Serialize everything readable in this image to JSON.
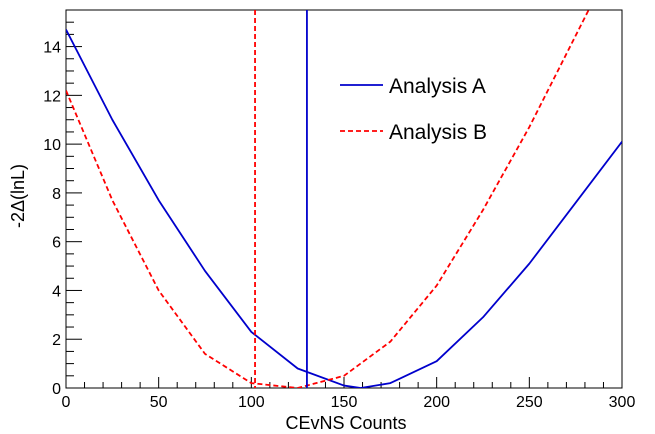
{
  "chart_data": {
    "type": "line",
    "xlabel": "CEvNS Counts",
    "ylabel": "-2Δ(lnL)",
    "xlim": [
      0,
      300
    ],
    "ylim": [
      0,
      15.5
    ],
    "x_ticks": [
      0,
      50,
      100,
      150,
      200,
      250,
      300
    ],
    "y_ticks": [
      0,
      2,
      4,
      6,
      8,
      10,
      12,
      14
    ],
    "grid": false,
    "legend_position": "top-right",
    "series": [
      {
        "name": "Analysis A",
        "color": "#0000cc",
        "style": "solid",
        "x": [
          0,
          25,
          50,
          75,
          100,
          125,
          150,
          159,
          175,
          200,
          225,
          250,
          275,
          300
        ],
        "y": [
          14.7,
          11.0,
          7.7,
          4.8,
          2.3,
          0.8,
          0.1,
          0.0,
          0.2,
          1.1,
          2.9,
          5.1,
          7.6,
          10.1
        ]
      },
      {
        "name": "Analysis B",
        "color": "#ff0000",
        "style": "dashed",
        "x": [
          0,
          25,
          50,
          75,
          100,
          125,
          150,
          175,
          200,
          225,
          250,
          282
        ],
        "y": [
          12.2,
          7.7,
          4.0,
          1.4,
          0.2,
          0.0,
          0.5,
          1.9,
          4.2,
          7.3,
          10.7,
          15.5
        ]
      }
    ],
    "vertical_lines": [
      {
        "series": "Analysis A",
        "x": 130,
        "color": "#0000cc",
        "style": "solid"
      },
      {
        "series": "Analysis B",
        "x": 102,
        "color": "#ff0000",
        "style": "dashed"
      }
    ]
  }
}
